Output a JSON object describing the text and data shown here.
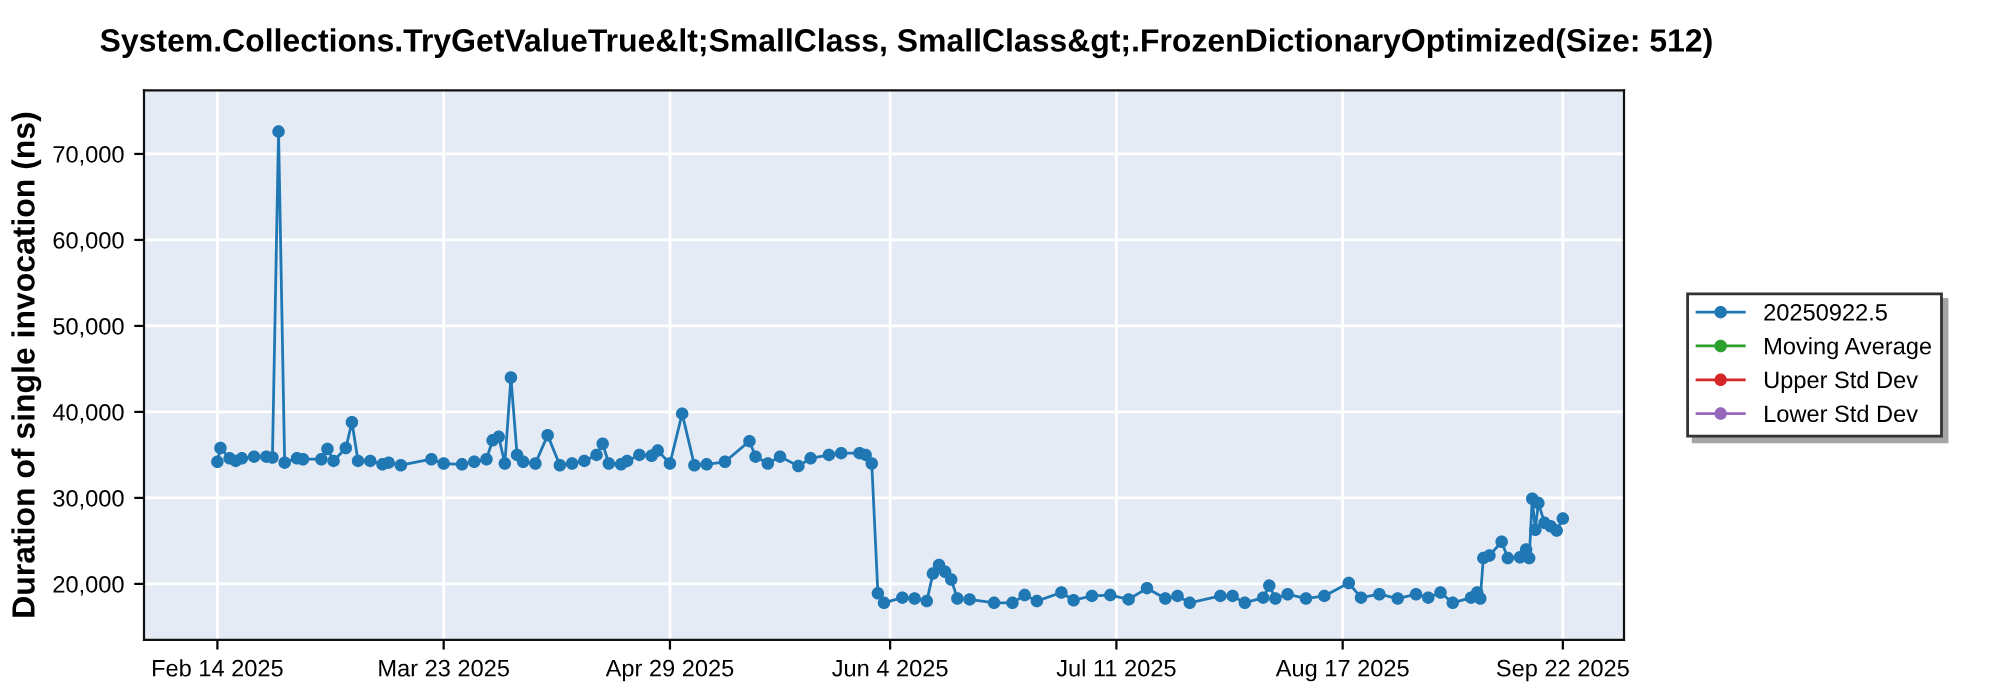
{
  "chart_data": {
    "type": "line",
    "title": "System.Collections.TryGetValueTrue&lt;SmallClass, SmallClass&gt;.FrozenDictionaryOptimized(Size: 512)",
    "ylabel": "Duration of single invocation (ns)",
    "xlim": [
      "2025-02-02",
      "2025-10-02"
    ],
    "xticks": [
      {
        "value": "2025-02-14",
        "label": "Feb 14 2025"
      },
      {
        "value": "2025-03-23",
        "label": "Mar 23 2025"
      },
      {
        "value": "2025-04-29",
        "label": "Apr 29 2025"
      },
      {
        "value": "2025-06-04",
        "label": "Jun 4 2025"
      },
      {
        "value": "2025-07-11",
        "label": "Jul 11 2025"
      },
      {
        "value": "2025-08-17",
        "label": "Aug 17 2025"
      },
      {
        "value": "2025-09-22",
        "label": "Sep 22 2025"
      }
    ],
    "ylim": [
      13500,
      77400
    ],
    "yticks": [
      {
        "value": 20000,
        "label": "20,000"
      },
      {
        "value": 30000,
        "label": "30,000"
      },
      {
        "value": 40000,
        "label": "40,000"
      },
      {
        "value": 50000,
        "label": "50,000"
      },
      {
        "value": 60000,
        "label": "60,000"
      },
      {
        "value": 70000,
        "label": "70,000"
      }
    ],
    "grid": true,
    "legend": "right",
    "marker": "circle",
    "line_style": "solid",
    "series": [
      {
        "name": "20250922.5",
        "color": "#1f77b4",
        "x": [
          "2025-02-14",
          "2025-02-14T12:00",
          "2025-02-16",
          "2025-02-17",
          "2025-02-18",
          "2025-02-20",
          "2025-02-22",
          "2025-02-23",
          "2025-02-24",
          "2025-02-25",
          "2025-02-27",
          "2025-02-28",
          "2025-03-03",
          "2025-03-04",
          "2025-03-05",
          "2025-03-07",
          "2025-03-08",
          "2025-03-09",
          "2025-03-11",
          "2025-03-13",
          "2025-03-14",
          "2025-03-16",
          "2025-03-21",
          "2025-03-23",
          "2025-03-26",
          "2025-03-28",
          "2025-03-30",
          "2025-03-31",
          "2025-04-01",
          "2025-04-02",
          "2025-04-03",
          "2025-04-04",
          "2025-04-05",
          "2025-04-07",
          "2025-04-09",
          "2025-04-11",
          "2025-04-13",
          "2025-04-15",
          "2025-04-17",
          "2025-04-18",
          "2025-04-19",
          "2025-04-21",
          "2025-04-22",
          "2025-04-24",
          "2025-04-26",
          "2025-04-27",
          "2025-04-29",
          "2025-05-01",
          "2025-05-03",
          "2025-05-05",
          "2025-05-08",
          "2025-05-12",
          "2025-05-13",
          "2025-05-15",
          "2025-05-17",
          "2025-05-20",
          "2025-05-22",
          "2025-05-25",
          "2025-05-27",
          "2025-05-30",
          "2025-05-31",
          "2025-06-01",
          "2025-06-02",
          "2025-06-03",
          "2025-06-06",
          "2025-06-08",
          "2025-06-10",
          "2025-06-11",
          "2025-06-12",
          "2025-06-13",
          "2025-06-14",
          "2025-06-15",
          "2025-06-17",
          "2025-06-21",
          "2025-06-24",
          "2025-06-26",
          "2025-06-28",
          "2025-07-02",
          "2025-07-04",
          "2025-07-07",
          "2025-07-10",
          "2025-07-13",
          "2025-07-16",
          "2025-07-19",
          "2025-07-21",
          "2025-07-23",
          "2025-07-28",
          "2025-07-30",
          "2025-08-01",
          "2025-08-04",
          "2025-08-05",
          "2025-08-06",
          "2025-08-08",
          "2025-08-11",
          "2025-08-14",
          "2025-08-18",
          "2025-08-20",
          "2025-08-23",
          "2025-08-26",
          "2025-08-29",
          "2025-08-31",
          "2025-09-02",
          "2025-09-04",
          "2025-09-07",
          "2025-09-08",
          "2025-09-08T12:00",
          "2025-09-09",
          "2025-09-10",
          "2025-09-12",
          "2025-09-13",
          "2025-09-15",
          "2025-09-16",
          "2025-09-16T12:00",
          "2025-09-17",
          "2025-09-17T12:00",
          "2025-09-18",
          "2025-09-19",
          "2025-09-20",
          "2025-09-21",
          "2025-09-22"
        ],
        "values": [
          34200,
          35800,
          34600,
          34300,
          34600,
          34800,
          34800,
          34700,
          72600,
          34100,
          34600,
          34500,
          34500,
          35700,
          34300,
          35800,
          38800,
          34300,
          34300,
          33900,
          34100,
          33800,
          34500,
          34000,
          33900,
          34200,
          34500,
          36700,
          37100,
          34000,
          44000,
          35000,
          34200,
          34000,
          37300,
          33800,
          34000,
          34300,
          35000,
          36300,
          34000,
          33900,
          34300,
          35000,
          34900,
          35500,
          34000,
          39800,
          33800,
          33900,
          34200,
          36600,
          34800,
          34000,
          34800,
          33700,
          34600,
          35000,
          35200,
          35200,
          35000,
          34000,
          18900,
          17800,
          18400,
          18300,
          18000,
          21200,
          22200,
          21400,
          20500,
          18300,
          18200,
          17800,
          17800,
          18700,
          18000,
          19000,
          18100,
          18600,
          18700,
          18200,
          19500,
          18300,
          18600,
          17800,
          18600,
          18600,
          17800,
          18400,
          19800,
          18300,
          18800,
          18300,
          18600,
          20100,
          18400,
          18800,
          18300,
          18800,
          18400,
          19000,
          17800,
          18400,
          19000,
          18300,
          23000,
          23300,
          24900,
          23000,
          23100,
          24000,
          23000,
          29900,
          26300,
          29400,
          27100,
          26700,
          26200,
          27600
        ]
      },
      {
        "name": "Moving Average",
        "color": "#2ca02c"
      },
      {
        "name": "Upper Std Dev",
        "color": "#d62728"
      },
      {
        "name": "Lower Std Dev",
        "color": "#9467bd"
      }
    ]
  }
}
